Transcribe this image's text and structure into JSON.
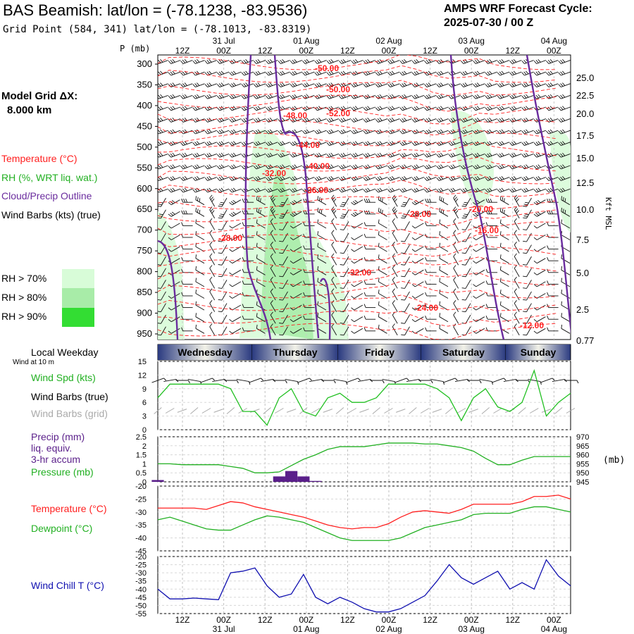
{
  "header": {
    "title": "BAS Beamish:  lat/lon = (-78.1238, -83.9536)",
    "subtitle": "Grid Point (584, 341) lat/lon = (-78.1013, -83.8319)",
    "cycle_label": "AMPS WRF Forecast Cycle:",
    "cycle_value": "2025-07-30 / 00  Z"
  },
  "left_panel": {
    "model_grid_label": "Model Grid ΔX:",
    "model_grid_value": "8.000 km",
    "legend": {
      "temperature": "Temperature (°C)",
      "rh": "RH (%, WRT liq. wat.)",
      "cloud": "Cloud/Precip Outline",
      "wind": "Wind Barbs (kts) (true)"
    },
    "rh_keys": [
      "RH > 70%",
      "RH > 80%",
      "RH > 90%"
    ],
    "local_weekday": "Local Weekday",
    "wind_at": "Wind at 10 m",
    "wind_panel": [
      "Wind Spd (kts)",
      "Wind Barbs (true)",
      "Wind Barbs (grid)"
    ],
    "precip_panel": [
      "Precip (mm)",
      "liq. equiv.",
      "3-hr accum",
      "Pressure (mb)"
    ],
    "temp_panel": [
      "Temperature (°C)",
      "Dewpoint (°C)"
    ],
    "chill_panel": [
      "Wind Chill T (°C)"
    ]
  },
  "colors": {
    "temperature": "#ff2020",
    "rh": "#22cc22",
    "cloud": "#6a2c9e",
    "wind_spd": "#22c022",
    "grid_barbs": "#aaaaaa",
    "precip": "#5a1f8a",
    "pressure": "#22b022",
    "dewpoint": "#22b022",
    "chill": "#1010b0",
    "rh70": "#d8fcd8",
    "rh80": "#a8eca8",
    "rh90": "#33dd33",
    "weekday_dark": "#2a3a80",
    "weekday_light": "#f2f2e8"
  },
  "time_axis": {
    "top_hours": [
      "12Z",
      "00Z",
      "12Z",
      "00Z",
      "12Z",
      "00Z",
      "12Z",
      "00Z",
      "12Z",
      "00Z"
    ],
    "top_dates": [
      "31 Jul",
      "01 Aug",
      "02 Aug",
      "03 Aug",
      "04 Aug"
    ],
    "bottom_hours": [
      "12Z",
      "00Z",
      "12Z",
      "00Z",
      "12Z",
      "00Z",
      "12Z",
      "00Z",
      "12Z",
      "00Z"
    ],
    "bottom_dates": [
      "31 Jul",
      "01 Aug",
      "02 Aug",
      "03 Aug",
      "04 Aug"
    ]
  },
  "weekdays": [
    "Wednesday",
    "Thursday",
    "Friday",
    "Saturday",
    "Sunday"
  ],
  "chart_data": [
    {
      "type": "heatmap",
      "title": "",
      "ylabel": "P (mb)",
      "y2label": "Kft MSL",
      "pressure_ticks": [
        300,
        350,
        400,
        450,
        500,
        550,
        600,
        650,
        700,
        750,
        800,
        850,
        900,
        950
      ],
      "height_ticks": [
        "25.0",
        "22.5",
        "20.0",
        "17.5",
        "15.0",
        "12.5",
        "10.0",
        "7.5",
        "5.0",
        "2.5",
        "0.77"
      ],
      "temperature_labels": [
        "-50.00",
        "-50.00",
        "-52.00",
        "-48.00",
        "-44.00",
        "-40.00",
        "-32.00",
        "-36.00",
        "-28.00",
        "-20.00",
        "-16.00",
        "-28.00",
        "-32.00",
        "-24.00",
        "-12.00"
      ]
    },
    {
      "type": "line",
      "title": "",
      "ylabel": "Wind Spd (kts)",
      "ylim": [
        0,
        15
      ],
      "yticks": [
        0,
        3,
        6,
        9,
        12,
        15
      ],
      "series": [
        {
          "name": "Wind Spd (kts)",
          "values": [
            7,
            10,
            10,
            10,
            10,
            10,
            9,
            4,
            4,
            1,
            7,
            9,
            4,
            3,
            7,
            8,
            6,
            6,
            7,
            10,
            10,
            10,
            10,
            9,
            7,
            2,
            7,
            9,
            5,
            4,
            6,
            13,
            3,
            6,
            8
          ]
        }
      ]
    },
    {
      "type": "line",
      "title": "",
      "ylabel": "Precip (mm)",
      "ylim": [
        0,
        2.5
      ],
      "yticks": [
        0,
        0.5,
        1.0,
        1.5,
        2.0,
        2.5
      ],
      "y2label": "(mb)",
      "y2lim": [
        945,
        970
      ],
      "y2ticks": [
        945,
        950,
        955,
        960,
        965,
        970
      ],
      "series": [
        {
          "name": "Precip (mm)",
          "values": [
            0.1,
            0,
            0,
            0,
            0,
            0,
            0,
            0,
            0,
            0,
            0.3,
            0.6,
            0.3,
            0.05,
            0,
            0,
            0,
            0,
            0,
            0,
            0,
            0,
            0,
            0,
            0,
            0,
            0,
            0,
            0,
            0,
            0,
            0,
            0,
            0,
            0
          ]
        },
        {
          "name": "Pressure (mb)",
          "values": [
            955,
            955,
            954.5,
            954.5,
            954.5,
            954.5,
            953.5,
            952.5,
            950,
            950,
            950.5,
            954,
            957.5,
            960,
            963,
            964.5,
            964.5,
            964.5,
            965.5,
            966.5,
            966.5,
            966.5,
            966,
            966,
            965,
            964,
            962,
            958,
            954.5,
            954.5,
            957,
            959,
            959,
            959,
            959
          ]
        }
      ]
    },
    {
      "type": "line",
      "title": "",
      "ylabel": "Temperature (°C)",
      "ylim": [
        -45,
        -20
      ],
      "yticks": [
        -45,
        -40,
        -35,
        -30,
        -25,
        -20
      ],
      "series": [
        {
          "name": "Temperature (°C)",
          "values": [
            -28.5,
            -28.5,
            -28.5,
            -28.5,
            -29,
            -27.5,
            -26,
            -26.5,
            -28,
            -29,
            -30,
            -31,
            -32,
            -33.5,
            -35,
            -36,
            -36.5,
            -36,
            -36,
            -34.5,
            -32,
            -30,
            -29.5,
            -30,
            -30.5,
            -29,
            -27,
            -27,
            -27,
            -27,
            -26,
            -24,
            -24,
            -23.5,
            -25
          ]
        },
        {
          "name": "Dewpoint (°C)",
          "values": [
            -33,
            -32,
            -33.5,
            -35,
            -36.5,
            -37,
            -37,
            -35,
            -33,
            -31.5,
            -32,
            -33,
            -34,
            -36,
            -38,
            -40,
            -41,
            -41,
            -41,
            -41,
            -40,
            -38,
            -36,
            -35,
            -34,
            -33,
            -31,
            -30.5,
            -30.5,
            -30.5,
            -29,
            -28,
            -28,
            -29,
            -30
          ]
        }
      ]
    },
    {
      "type": "line",
      "title": "",
      "ylabel": "Wind Chill T (°C)",
      "ylim": [
        -55,
        -20
      ],
      "yticks": [
        -55,
        -50,
        -45,
        -40,
        -35,
        -30,
        -25,
        -20
      ],
      "series": [
        {
          "name": "Wind Chill T (°C)",
          "values": [
            -40,
            -46,
            -46,
            -45.5,
            -46,
            -46.5,
            -30,
            -29,
            -27,
            -38,
            -45,
            -43,
            -31,
            -45,
            -49,
            -45,
            -48,
            -52,
            -54,
            -54,
            -52,
            -48,
            -44,
            -35,
            -25,
            -33,
            -37,
            -33,
            -29,
            -40,
            -36,
            -40,
            -22,
            -32,
            -38
          ]
        }
      ]
    }
  ]
}
